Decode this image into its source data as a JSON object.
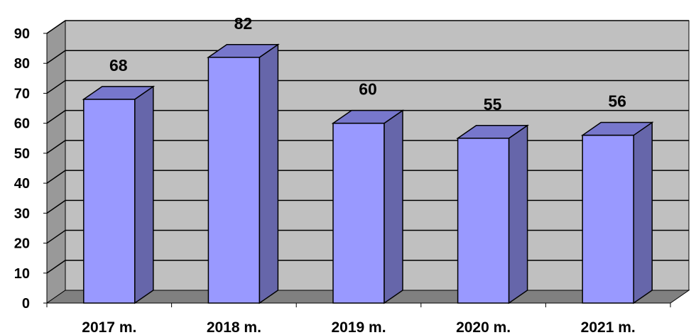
{
  "chart_data": {
    "type": "bar",
    "categories": [
      "2017 m.",
      "2018 m.",
      "2019 m.",
      "2020 m.",
      "2021 m."
    ],
    "values": [
      68,
      82,
      60,
      55,
      56
    ],
    "data_labels": [
      "68",
      "82",
      "60",
      "55",
      "56"
    ],
    "y_ticks": [
      "0",
      "10",
      "20",
      "30",
      "40",
      "50",
      "60",
      "70",
      "80",
      "90"
    ],
    "ylim": [
      0,
      90
    ],
    "grid": true,
    "three_d": true,
    "colors": {
      "bar_front": "#9999ff",
      "bar_side": "#6666aa",
      "bar_top": "#7777cc",
      "back_wall": "#c0c0c0",
      "side_wall": "#999999",
      "floor": "#808080"
    }
  }
}
